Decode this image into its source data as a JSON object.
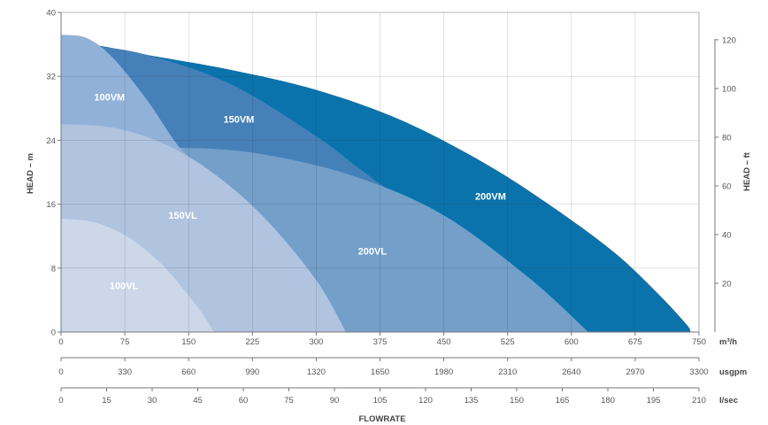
{
  "chart_data": {
    "type": "area",
    "xlabel": "FLOWRATE",
    "ylabel": "HEAD – m",
    "ylabel_right": "HEAD – ft",
    "xlim": [
      0,
      750
    ],
    "ylim": [
      0,
      40
    ],
    "grid": true,
    "y_ticks": [
      0,
      8,
      16,
      24,
      32,
      40
    ],
    "y_ticks_right": [
      20,
      40,
      60,
      80,
      100,
      120
    ],
    "x_axes": [
      {
        "unit": "m³/h",
        "ticks": [
          "0",
          "75",
          "150",
          "225",
          "300",
          "375",
          "450",
          "525",
          "600",
          "675",
          "750"
        ]
      },
      {
        "unit": "usgpm",
        "ticks": [
          "0",
          "330",
          "660",
          "990",
          "1320",
          "1650",
          "1980",
          "2310",
          "2640",
          "2970",
          "3300"
        ]
      },
      {
        "unit": "l/sec",
        "ticks": [
          "0",
          "15",
          "30",
          "45",
          "60",
          "75",
          "90",
          "105",
          "120",
          "135",
          "150",
          "165",
          "180",
          "195",
          "210"
        ]
      }
    ],
    "series": [
      {
        "name": "200VM",
        "color": "#0b73ab",
        "x": [
          0,
          40,
          100,
          200,
          300,
          400,
          500,
          580,
          650,
          700,
          735,
          740
        ],
        "y": [
          36.0,
          35.9,
          34.7,
          32.8,
          30.3,
          26.5,
          21.0,
          15.5,
          10.0,
          5.0,
          1.0,
          0.0
        ]
      },
      {
        "name": "150VM",
        "color": "#4680b8",
        "x": [
          0,
          30,
          100,
          200,
          300,
          350,
          395
        ],
        "y": [
          36.0,
          35.9,
          34.7,
          31.0,
          24.5,
          20.5,
          17.0
        ]
      },
      {
        "name": "200VL",
        "color": "#739fc9",
        "x": [
          0,
          160,
          250,
          350,
          450,
          550,
          620
        ],
        "y": [
          23.0,
          23.0,
          22.0,
          19.3,
          14.6,
          6.8,
          0.0
        ]
      },
      {
        "name": "100VM",
        "color": "#92b1d8",
        "x": [
          0,
          30,
          60,
          100,
          140,
          168
        ],
        "y": [
          37.2,
          36.8,
          34.4,
          29.2,
          23.0,
          20.8
        ]
      },
      {
        "name": "150VL",
        "color": "#b0c3df",
        "x": [
          0,
          60,
          120,
          180,
          240,
          300,
          335
        ],
        "y": [
          26.0,
          25.6,
          23.6,
          19.8,
          14.2,
          6.5,
          0.0
        ]
      },
      {
        "name": "100VL",
        "color": "#ccd7ea",
        "x": [
          0,
          40,
          80,
          120,
          160,
          180
        ],
        "y": [
          14.2,
          13.7,
          11.8,
          8.3,
          3.2,
          0.0
        ]
      }
    ],
    "labels": [
      {
        "text": "100VM",
        "x": 57,
        "y": 29.3
      },
      {
        "text": "150VM",
        "x": 209,
        "y": 26.5
      },
      {
        "text": "200VM",
        "x": 505,
        "y": 16.9
      },
      {
        "text": "150VL",
        "x": 143,
        "y": 14.5
      },
      {
        "text": "200VL",
        "x": 366,
        "y": 10.0
      },
      {
        "text": "100VL",
        "x": 74,
        "y": 5.7
      }
    ]
  }
}
